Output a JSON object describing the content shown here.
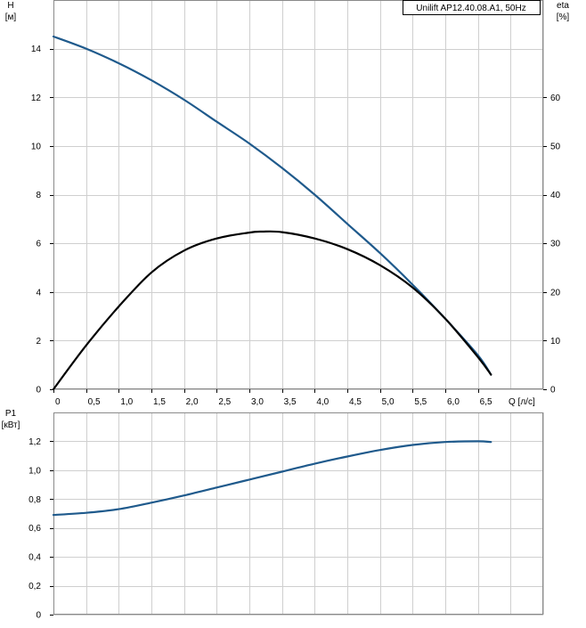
{
  "legend": {
    "label": "Unilift AP12.40.08.A1, 50Hz"
  },
  "colors": {
    "curve_blue": "#1f5a8c",
    "curve_black": "#000000",
    "grid": "#cfcfcf"
  },
  "chart_data": [
    {
      "type": "line",
      "panel": "top",
      "ylabel": "H",
      "yunit": "[м]",
      "y2label": "eta",
      "y2unit": "[%]",
      "xlabel": "Q [л/с]",
      "xlim": [
        0,
        7.5
      ],
      "ylim": [
        0,
        16
      ],
      "y2lim": [
        0,
        80
      ],
      "x_ticks": [
        0,
        0.5,
        1.0,
        1.5,
        2.0,
        2.5,
        3.0,
        3.5,
        4.0,
        4.5,
        5.0,
        5.5,
        6.0,
        6.5
      ],
      "x_tick_labels": [
        "0",
        "0,5",
        "1,0",
        "1,5",
        "2,0",
        "2,5",
        "3,0",
        "3,5",
        "4,0",
        "4,5",
        "5,0",
        "5,5",
        "6,0",
        "6,5"
      ],
      "y_ticks": [
        0,
        2,
        4,
        6,
        8,
        10,
        12,
        14
      ],
      "y_tick_labels": [
        "0",
        "2",
        "4",
        "6",
        "8",
        "10",
        "12",
        "14"
      ],
      "y2_ticks": [
        0,
        10,
        20,
        30,
        40,
        50,
        60
      ],
      "y2_tick_labels": [
        "0",
        "10",
        "20",
        "30",
        "40",
        "50",
        "60"
      ],
      "grid": true,
      "series": [
        {
          "axis": "left",
          "color": "#1f5a8c",
          "x": [
            0,
            0.5,
            1.0,
            1.5,
            2.0,
            2.5,
            3.0,
            3.5,
            4.0,
            4.5,
            5.0,
            5.5,
            6.0,
            6.5,
            6.7
          ],
          "y": [
            14.5,
            14.0,
            13.4,
            12.7,
            11.9,
            11.0,
            10.1,
            9.1,
            8.0,
            6.8,
            5.6,
            4.3,
            2.9,
            1.4,
            0.6
          ]
        },
        {
          "axis": "right",
          "color": "#000000",
          "x": [
            0,
            0.5,
            1.0,
            1.5,
            2.0,
            2.5,
            3.0,
            3.2,
            3.5,
            4.0,
            4.5,
            5.0,
            5.5,
            6.0,
            6.5,
            6.7
          ],
          "y": [
            0,
            9,
            17,
            24,
            28.5,
            31,
            32.2,
            32.4,
            32.3,
            31,
            28.8,
            25.5,
            20.9,
            14.5,
            6.6,
            3
          ]
        }
      ]
    },
    {
      "type": "line",
      "panel": "bottom",
      "ylabel": "P1",
      "yunit": "[кВт]",
      "xlim": [
        0,
        7.5
      ],
      "ylim": [
        0,
        1.4
      ],
      "y_ticks": [
        0,
        0.2,
        0.4,
        0.6,
        0.8,
        1.0,
        1.2
      ],
      "y_tick_labels": [
        "0",
        "0,2",
        "0,4",
        "0,6",
        "0,8",
        "1,0",
        "1,2"
      ],
      "grid": true,
      "series": [
        {
          "axis": "left",
          "color": "#1f5a8c",
          "x": [
            0,
            0.5,
            1.0,
            1.5,
            2.0,
            2.5,
            3.0,
            3.5,
            4.0,
            4.5,
            5.0,
            5.5,
            6.0,
            6.5,
            6.7
          ],
          "y": [
            0.69,
            0.705,
            0.73,
            0.775,
            0.825,
            0.88,
            0.935,
            0.99,
            1.045,
            1.095,
            1.14,
            1.175,
            1.195,
            1.2,
            1.195
          ]
        }
      ]
    }
  ]
}
